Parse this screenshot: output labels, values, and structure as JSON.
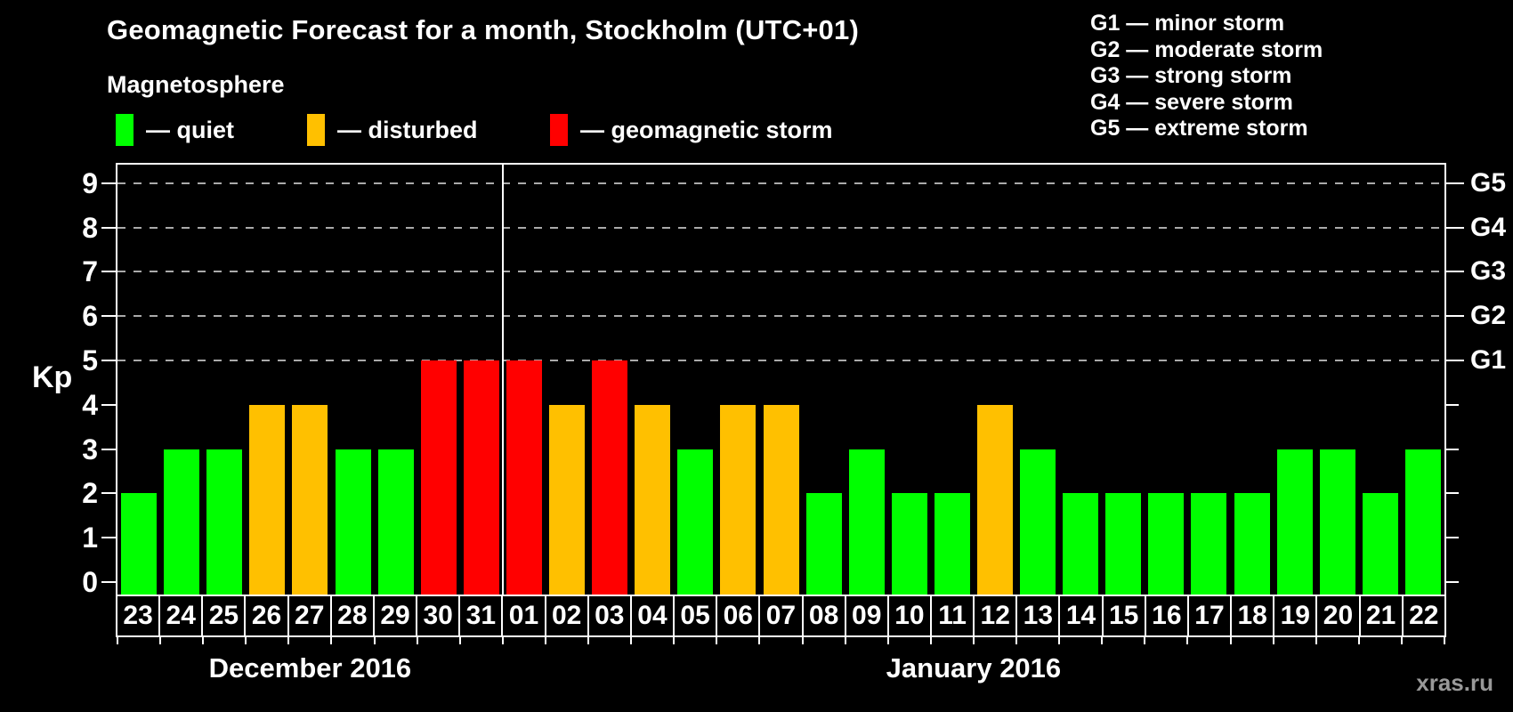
{
  "title": "Geomagnetic Forecast for a month, Stockholm (UTC+01)",
  "subtitle": "Magnetosphere",
  "bar_legend": [
    {
      "label": "— quiet",
      "status": "quiet",
      "color": "#00FF00",
      "x": 0
    },
    {
      "label": "— disturbed",
      "status": "disturbed",
      "color": "#FFC000",
      "x": 215
    },
    {
      "label": "— geomagnetic storm",
      "status": "storm",
      "color": "#FF0000",
      "x": 488
    }
  ],
  "g_legend": [
    {
      "label": "G1 — minor storm"
    },
    {
      "label": "G2 — moderate storm"
    },
    {
      "label": "G3 — strong storm"
    },
    {
      "label": "G4 — severe storm"
    },
    {
      "label": "G5 — extreme storm"
    }
  ],
  "watermark": "xras.ru",
  "chart_data": {
    "type": "bar",
    "title": "Geomagnetic Forecast for a month, Stockholm (UTC+01)",
    "ylabel": "Kp",
    "ylim": [
      0,
      9
    ],
    "yticks": [
      0,
      1,
      2,
      3,
      4,
      5,
      6,
      7,
      8,
      9
    ],
    "grid": "dashed horizontal lines at Kp 5-9 (G1-G5 levels)",
    "legend_position": "top",
    "right_axis_levels": [
      {
        "label": "G1",
        "kp": 5
      },
      {
        "label": "G2",
        "kp": 6
      },
      {
        "label": "G3",
        "kp": 7
      },
      {
        "label": "G4",
        "kp": 8
      },
      {
        "label": "G5",
        "kp": 9
      }
    ],
    "status_colors": {
      "quiet": "#00FF00",
      "disturbed": "#FFC000",
      "storm": "#FF0000"
    },
    "days": [
      {
        "day": "23",
        "kp": 2,
        "status": "quiet"
      },
      {
        "day": "24",
        "kp": 3,
        "status": "quiet"
      },
      {
        "day": "25",
        "kp": 3,
        "status": "quiet"
      },
      {
        "day": "26",
        "kp": 4,
        "status": "disturbed"
      },
      {
        "day": "27",
        "kp": 4,
        "status": "disturbed"
      },
      {
        "day": "28",
        "kp": 3,
        "status": "quiet"
      },
      {
        "day": "29",
        "kp": 3,
        "status": "quiet"
      },
      {
        "day": "30",
        "kp": 5,
        "status": "storm"
      },
      {
        "day": "31",
        "kp": 5,
        "status": "storm"
      },
      {
        "day": "01",
        "kp": 5,
        "status": "storm"
      },
      {
        "day": "02",
        "kp": 4,
        "status": "disturbed"
      },
      {
        "day": "03",
        "kp": 5,
        "status": "storm"
      },
      {
        "day": "04",
        "kp": 4,
        "status": "disturbed"
      },
      {
        "day": "05",
        "kp": 3,
        "status": "quiet"
      },
      {
        "day": "06",
        "kp": 4,
        "status": "disturbed"
      },
      {
        "day": "07",
        "kp": 4,
        "status": "disturbed"
      },
      {
        "day": "08",
        "kp": 2,
        "status": "quiet"
      },
      {
        "day": "09",
        "kp": 3,
        "status": "quiet"
      },
      {
        "day": "10",
        "kp": 2,
        "status": "quiet"
      },
      {
        "day": "11",
        "kp": 2,
        "status": "quiet"
      },
      {
        "day": "12",
        "kp": 4,
        "status": "disturbed"
      },
      {
        "day": "13",
        "kp": 3,
        "status": "quiet"
      },
      {
        "day": "14",
        "kp": 2,
        "status": "quiet"
      },
      {
        "day": "15",
        "kp": 2,
        "status": "quiet"
      },
      {
        "day": "16",
        "kp": 2,
        "status": "quiet"
      },
      {
        "day": "17",
        "kp": 2,
        "status": "quiet"
      },
      {
        "day": "18",
        "kp": 2,
        "status": "quiet"
      },
      {
        "day": "19",
        "kp": 3,
        "status": "quiet"
      },
      {
        "day": "20",
        "kp": 3,
        "status": "quiet"
      },
      {
        "day": "21",
        "kp": 2,
        "status": "quiet"
      },
      {
        "day": "22",
        "kp": 3,
        "status": "quiet"
      }
    ],
    "months": [
      {
        "label": "December 2016",
        "start_index": 0,
        "num_days": 9
      },
      {
        "label": "January 2016",
        "start_index": 9,
        "num_days": 22
      }
    ],
    "divider_after_index": 8
  }
}
